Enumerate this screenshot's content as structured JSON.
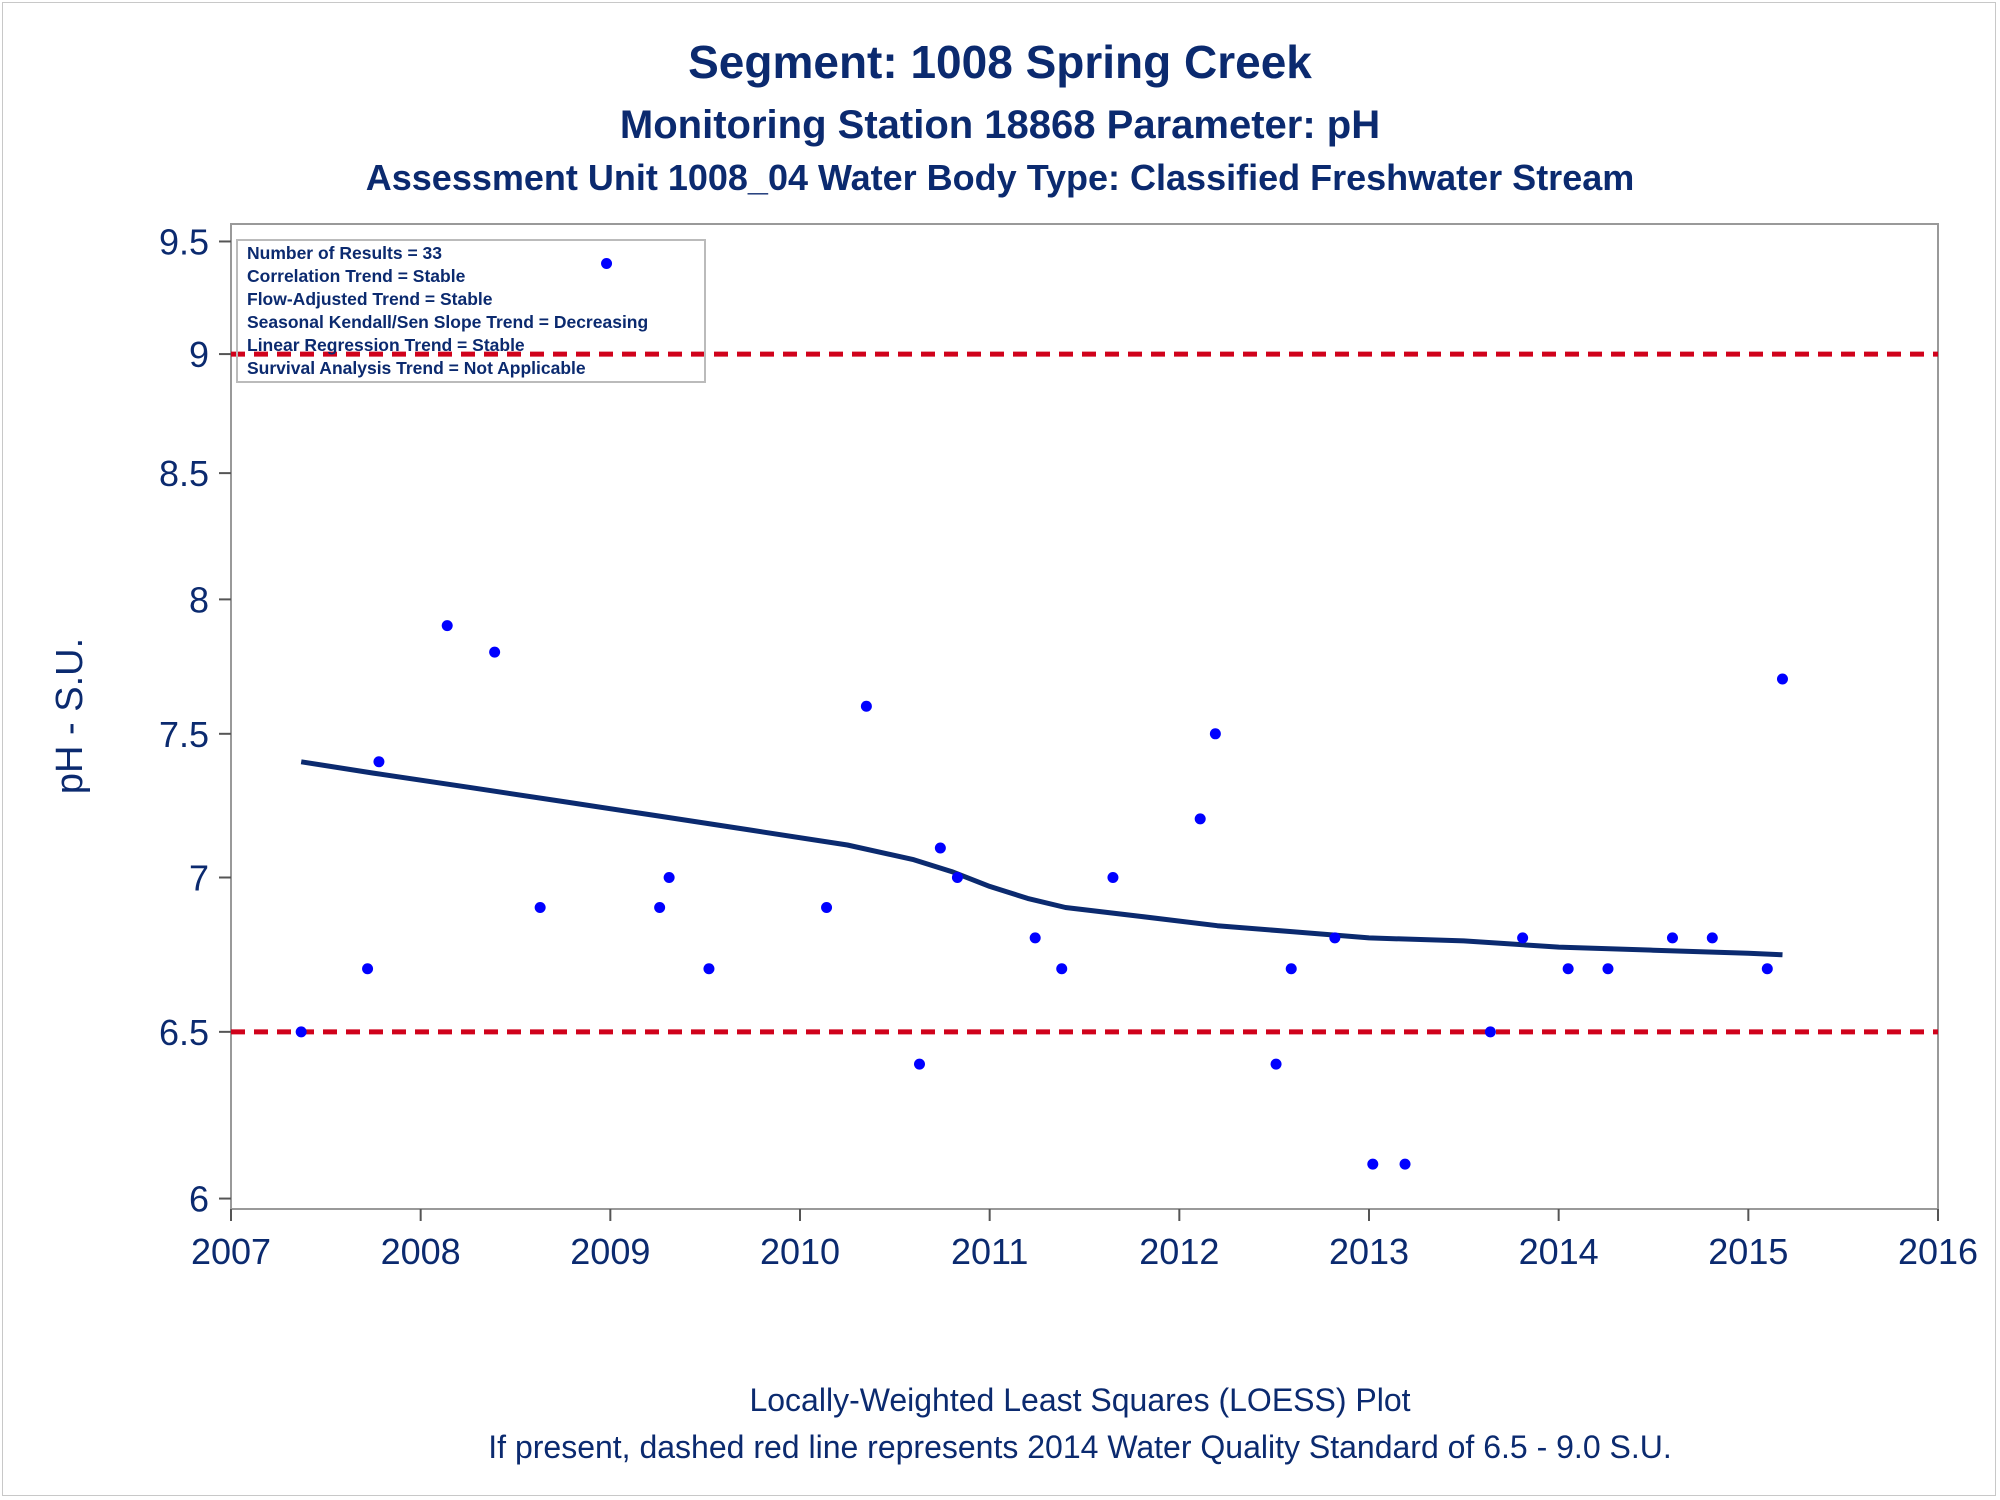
{
  "chart_data": {
    "type": "scatter",
    "title": "Segment: 1008  Spring Creek",
    "subtitle1": "Monitoring Station 18868 Parameter: pH",
    "subtitle2": "Assessment Unit 1008_04   Water Body Type: Classified Freshwater Stream",
    "ylabel": "pH - S.U.",
    "xlabel": "",
    "footnote1": "Locally-Weighted Least Squares (LOESS) Plot",
    "footnote2": "If present, dashed red line represents 2014 Water Quality Standard of 6.5 - 9.0 S.U.",
    "xlim": [
      2007,
      2016
    ],
    "ylim": [
      5.97,
      9.58
    ],
    "y_scale": "log",
    "x_ticks": [
      "2007",
      "2008",
      "2009",
      "2010",
      "2011",
      "2012",
      "2013",
      "2014",
      "2015",
      "2016"
    ],
    "y_ticks": [
      "6",
      "6.5",
      "7",
      "7.5",
      "8",
      "8.5",
      "9",
      "9.5"
    ],
    "stats_box": [
      "Number of Results = 33",
      "Correlation Trend = Stable",
      "Flow-Adjusted Trend = Stable",
      "Seasonal Kendall/Sen Slope Trend = Decreasing",
      "Linear Regression Trend = Stable",
      "Survival Analysis Trend = Not Applicable"
    ],
    "reference_lines": [
      {
        "y": 9.0,
        "color": "#d0021b",
        "style": "dashed"
      },
      {
        "y": 6.5,
        "color": "#d0021b",
        "style": "dashed"
      }
    ],
    "points": [
      {
        "x": 2007.37,
        "y": 6.5
      },
      {
        "x": 2007.72,
        "y": 6.7
      },
      {
        "x": 2007.78,
        "y": 7.4
      },
      {
        "x": 2008.14,
        "y": 7.9
      },
      {
        "x": 2008.39,
        "y": 7.8
      },
      {
        "x": 2008.63,
        "y": 6.9
      },
      {
        "x": 2008.98,
        "y": 9.4
      },
      {
        "x": 2009.26,
        "y": 6.9
      },
      {
        "x": 2009.31,
        "y": 7.0
      },
      {
        "x": 2009.52,
        "y": 6.7
      },
      {
        "x": 2010.14,
        "y": 6.9
      },
      {
        "x": 2010.35,
        "y": 7.6
      },
      {
        "x": 2010.63,
        "y": 6.4
      },
      {
        "x": 2010.74,
        "y": 7.1
      },
      {
        "x": 2010.83,
        "y": 7.0
      },
      {
        "x": 2011.24,
        "y": 6.8
      },
      {
        "x": 2011.38,
        "y": 6.7
      },
      {
        "x": 2011.65,
        "y": 7.0
      },
      {
        "x": 2012.11,
        "y": 7.2
      },
      {
        "x": 2012.19,
        "y": 7.5
      },
      {
        "x": 2012.51,
        "y": 6.4
      },
      {
        "x": 2012.59,
        "y": 6.7
      },
      {
        "x": 2012.82,
        "y": 6.8
      },
      {
        "x": 2013.02,
        "y": 6.1
      },
      {
        "x": 2013.19,
        "y": 6.1
      },
      {
        "x": 2013.64,
        "y": 6.5
      },
      {
        "x": 2013.81,
        "y": 6.8
      },
      {
        "x": 2014.05,
        "y": 6.7
      },
      {
        "x": 2014.26,
        "y": 6.7
      },
      {
        "x": 2014.6,
        "y": 6.8
      },
      {
        "x": 2014.81,
        "y": 6.8
      },
      {
        "x": 2015.1,
        "y": 6.7
      },
      {
        "x": 2015.18,
        "y": 7.7
      }
    ],
    "loess_line": {
      "x": [
        2007.37,
        2007.75,
        2008.25,
        2008.75,
        2009.25,
        2009.75,
        2010.25,
        2010.6,
        2010.8,
        2011.0,
        2011.2,
        2011.4,
        2011.8,
        2012.2,
        2012.6,
        2013.0,
        2013.5,
        2014.0,
        2014.5,
        2015.0,
        2015.18
      ],
      "y": [
        7.4,
        7.36,
        7.31,
        7.26,
        7.21,
        7.16,
        7.11,
        7.06,
        7.02,
        6.97,
        6.93,
        6.9,
        6.87,
        6.84,
        6.82,
        6.8,
        6.79,
        6.77,
        6.76,
        6.75,
        6.745
      ]
    },
    "colors": {
      "points": "#0000ff",
      "loess": "#0b2a6f",
      "reference": "#d0021b",
      "text": "#0b2a6f"
    },
    "grid": false,
    "legend": "top-left stats box"
  }
}
